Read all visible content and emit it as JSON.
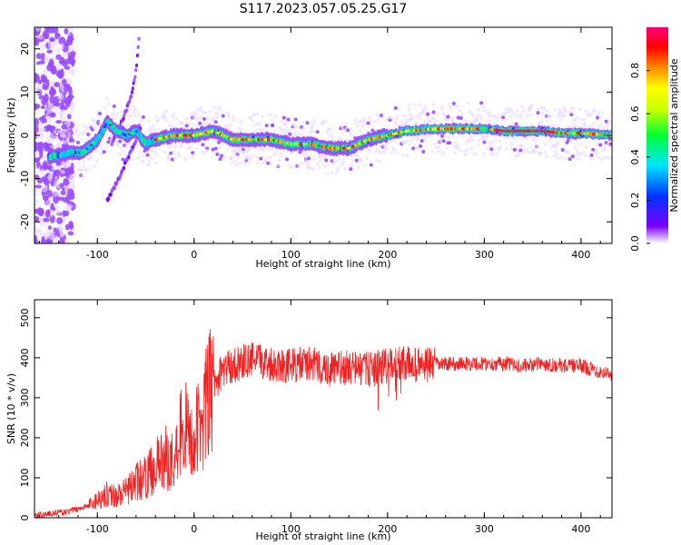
{
  "title": "S117.2023.057.05.25.G17",
  "chart_data": [
    {
      "type": "heatmap",
      "xlabel": "Height of straight line (km)",
      "ylabel": "Frequency (Hz)",
      "xlim": [
        -165,
        432
      ],
      "ylim": [
        -25,
        25
      ],
      "x_ticks": [
        -100,
        0,
        100,
        200,
        300,
        400
      ],
      "y_ticks": [
        -20,
        -10,
        0,
        10,
        20
      ],
      "colorbar": {
        "label": "Normalized spectral amplitude",
        "range": [
          0.0,
          1.0
        ],
        "ticks": [
          0.0,
          0.2,
          0.4,
          0.6,
          0.8
        ],
        "tick_labels": [
          "0.0",
          "0.2",
          "0.4",
          "0.6",
          "0.8"
        ],
        "colormap": [
          "#ffffff",
          "#7a00ff",
          "#0033ff",
          "#00e5ff",
          "#00ff33",
          "#c8ff00",
          "#ffff00",
          "#ff8000",
          "#ff0000",
          "#ff0080"
        ]
      },
      "ridge": {
        "x": [
          -150,
          -130,
          -115,
          -100,
          -90,
          -80,
          -70,
          -60,
          -50,
          -40,
          -20,
          0,
          20,
          40,
          60,
          80,
          100,
          120,
          140,
          160,
          180,
          200,
          220,
          250,
          280,
          300,
          320,
          340,
          360,
          380,
          400,
          432
        ],
        "y": [
          -5,
          -4,
          -4,
          -1,
          3,
          1,
          0,
          1,
          -2,
          -1,
          0,
          0,
          1,
          -1,
          -1,
          -1,
          -2,
          -2,
          -3,
          -3,
          -1,
          0,
          1,
          1.5,
          1.5,
          1.5,
          1,
          1,
          1,
          0.5,
          0.5,
          0
        ]
      },
      "branches": [
        {
          "x": [
            -90,
            -80,
            -70,
            -60,
            -55
          ],
          "y": [
            -15,
            -11,
            -6,
            -1,
            2
          ]
        },
        {
          "x": [
            -85,
            -75,
            -65,
            -60,
            -57
          ],
          "y": [
            -2,
            3,
            9,
            15,
            22
          ]
        }
      ]
    },
    {
      "type": "line",
      "xlabel": "Height of straight line (km)",
      "ylabel": "SNR (10 * v/v)",
      "xlim": [
        -165,
        432
      ],
      "ylim": [
        0,
        545
      ],
      "x_ticks": [
        -100,
        0,
        100,
        200,
        300,
        400
      ],
      "y_ticks": [
        0,
        100,
        200,
        300,
        400,
        500
      ],
      "color": "#ee2222",
      "x": [
        -165,
        -150,
        -130,
        -110,
        -100,
        -90,
        -80,
        -70,
        -60,
        -50,
        -40,
        -30,
        -20,
        -15,
        -10,
        -5,
        0,
        10,
        20,
        30,
        40,
        50,
        60,
        80,
        100,
        120,
        140,
        160,
        180,
        200,
        220,
        240,
        260,
        280,
        300,
        320,
        340,
        360,
        380,
        400,
        420,
        432
      ],
      "y": [
        5,
        10,
        15,
        30,
        45,
        60,
        55,
        65,
        90,
        100,
        130,
        150,
        140,
        220,
        230,
        200,
        190,
        270,
        330,
        370,
        380,
        390,
        395,
        385,
        380,
        385,
        370,
        375,
        370,
        380,
        385,
        380,
        385,
        385,
        385,
        385,
        380,
        385,
        380,
        380,
        365,
        360
      ]
    }
  ]
}
